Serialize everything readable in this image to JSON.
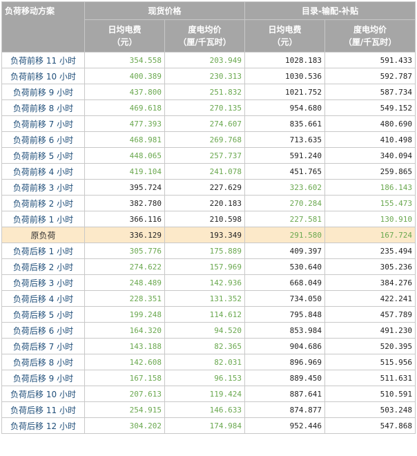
{
  "header": {
    "col0": "负荷移动方案",
    "group1": "现货价格",
    "group2": "目录-输配-补贴",
    "daily_fee": "日均电费",
    "daily_fee_unit": "（元）",
    "unit_price": "度电均价",
    "unit_price_unit": "（厘/千瓦时）"
  },
  "rows": [
    {
      "label": "负荷前移 11 小时",
      "v": [
        "354.558",
        "203.949",
        "1028.183",
        "591.433"
      ],
      "c": [
        "g",
        "g",
        "k",
        "k"
      ]
    },
    {
      "label": "负荷前移 10 小时",
      "v": [
        "400.389",
        "230.313",
        "1030.536",
        "592.787"
      ],
      "c": [
        "g",
        "g",
        "k",
        "k"
      ]
    },
    {
      "label": "负荷前移 9 小时",
      "v": [
        "437.800",
        "251.832",
        "1021.752",
        "587.734"
      ],
      "c": [
        "g",
        "g",
        "k",
        "k"
      ]
    },
    {
      "label": "负荷前移 8 小时",
      "v": [
        "469.618",
        "270.135",
        "954.680",
        "549.152"
      ],
      "c": [
        "g",
        "g",
        "k",
        "k"
      ]
    },
    {
      "label": "负荷前移 7 小时",
      "v": [
        "477.393",
        "274.607",
        "835.661",
        "480.690"
      ],
      "c": [
        "g",
        "g",
        "k",
        "k"
      ]
    },
    {
      "label": "负荷前移 6 小时",
      "v": [
        "468.981",
        "269.768",
        "713.635",
        "410.498"
      ],
      "c": [
        "g",
        "g",
        "k",
        "k"
      ]
    },
    {
      "label": "负荷前移 5 小时",
      "v": [
        "448.065",
        "257.737",
        "591.240",
        "340.094"
      ],
      "c": [
        "g",
        "g",
        "k",
        "k"
      ]
    },
    {
      "label": "负荷前移 4 小时",
      "v": [
        "419.104",
        "241.078",
        "451.765",
        "259.865"
      ],
      "c": [
        "g",
        "g",
        "k",
        "k"
      ]
    },
    {
      "label": "负荷前移 3 小时",
      "v": [
        "395.724",
        "227.629",
        "323.602",
        "186.143"
      ],
      "c": [
        "k",
        "k",
        "g",
        "g"
      ]
    },
    {
      "label": "负荷前移 2 小时",
      "v": [
        "382.780",
        "220.183",
        "270.284",
        "155.473"
      ],
      "c": [
        "k",
        "k",
        "g",
        "g"
      ]
    },
    {
      "label": "负荷前移 1 小时",
      "v": [
        "366.116",
        "210.598",
        "227.581",
        "130.910"
      ],
      "c": [
        "k",
        "k",
        "g",
        "g"
      ]
    },
    {
      "label": "原负荷",
      "v": [
        "336.129",
        "193.349",
        "291.580",
        "167.724"
      ],
      "c": [
        "k",
        "k",
        "g",
        "g"
      ],
      "base": true
    },
    {
      "label": "负荷后移 1 小时",
      "v": [
        "305.776",
        "175.889",
        "409.397",
        "235.494"
      ],
      "c": [
        "g",
        "g",
        "k",
        "k"
      ]
    },
    {
      "label": "负荷后移 2 小时",
      "v": [
        "274.622",
        "157.969",
        "530.640",
        "305.236"
      ],
      "c": [
        "g",
        "g",
        "k",
        "k"
      ]
    },
    {
      "label": "负荷后移 3 小时",
      "v": [
        "248.489",
        "142.936",
        "668.049",
        "384.276"
      ],
      "c": [
        "g",
        "g",
        "k",
        "k"
      ]
    },
    {
      "label": "负荷后移 4 小时",
      "v": [
        "228.351",
        "131.352",
        "734.050",
        "422.241"
      ],
      "c": [
        "g",
        "g",
        "k",
        "k"
      ]
    },
    {
      "label": "负荷后移 5 小时",
      "v": [
        "199.248",
        "114.612",
        "795.848",
        "457.789"
      ],
      "c": [
        "g",
        "g",
        "k",
        "k"
      ]
    },
    {
      "label": "负荷后移 6 小时",
      "v": [
        "164.320",
        "94.520",
        "853.984",
        "491.230"
      ],
      "c": [
        "g",
        "g",
        "k",
        "k"
      ]
    },
    {
      "label": "负荷后移 7 小时",
      "v": [
        "143.188",
        "82.365",
        "904.686",
        "520.395"
      ],
      "c": [
        "g",
        "g",
        "k",
        "k"
      ]
    },
    {
      "label": "负荷后移 8 小时",
      "v": [
        "142.608",
        "82.031",
        "896.969",
        "515.956"
      ],
      "c": [
        "g",
        "g",
        "k",
        "k"
      ]
    },
    {
      "label": "负荷后移 9 小时",
      "v": [
        "167.158",
        "96.153",
        "889.450",
        "511.631"
      ],
      "c": [
        "g",
        "g",
        "k",
        "k"
      ]
    },
    {
      "label": "负荷后移 10 小时",
      "v": [
        "207.613",
        "119.424",
        "887.641",
        "510.591"
      ],
      "c": [
        "g",
        "g",
        "k",
        "k"
      ]
    },
    {
      "label": "负荷后移 11 小时",
      "v": [
        "254.915",
        "146.633",
        "874.877",
        "503.248"
      ],
      "c": [
        "g",
        "g",
        "k",
        "k"
      ]
    },
    {
      "label": "负荷后移 12 小时",
      "v": [
        "304.202",
        "174.984",
        "952.446",
        "547.868"
      ],
      "c": [
        "g",
        "g",
        "k",
        "k"
      ]
    }
  ]
}
